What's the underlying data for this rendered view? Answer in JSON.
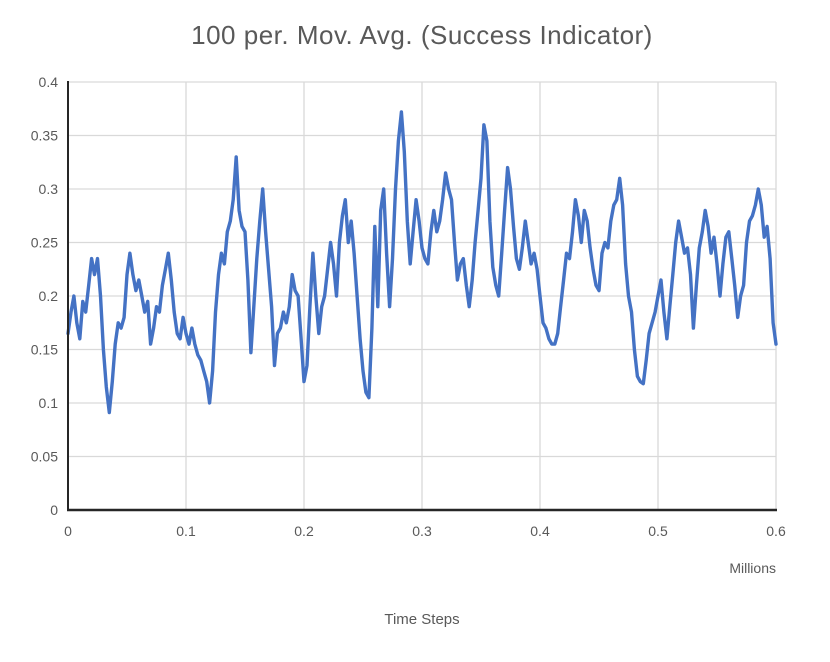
{
  "title": "100 per. Mov. Avg. (Success Indicator)",
  "x_axis_title": "Time Steps",
  "x_unit_label": "Millions",
  "colors": {
    "series_line": "#4472C4",
    "gridline": "#D9D9D9",
    "axis_line": "#262626",
    "text": "#595959",
    "background": "#FFFFFF"
  },
  "chart_data": {
    "type": "line",
    "title": "100 per. Mov. Avg. (Success Indicator)",
    "xlabel": "Time Steps",
    "x_unit_label": "Millions",
    "ylabel": "",
    "xlim": [
      0,
      0.6
    ],
    "ylim": [
      0,
      0.4
    ],
    "x_ticks": [
      "0",
      "0.1",
      "0.2",
      "0.3",
      "0.4",
      "0.5",
      "0.6"
    ],
    "x_tick_values": [
      0,
      0.1,
      0.2,
      0.3,
      0.4,
      0.5,
      0.6
    ],
    "y_ticks": [
      "0",
      "0.05",
      "0.1",
      "0.15",
      "0.2",
      "0.25",
      "0.3",
      "0.35",
      "0.4"
    ],
    "y_tick_values": [
      0,
      0.05,
      0.1,
      0.15,
      0.2,
      0.25,
      0.3,
      0.35,
      0.4
    ],
    "grid": true,
    "legend_position": "none",
    "series": [
      {
        "name": "100 per. Mov. Avg. (Success Indicator)",
        "color": "#4472C4",
        "x_start": 0,
        "x_step": 0.0025,
        "x_unit": "Millions of time steps",
        "values": [
          0.165,
          0.185,
          0.2,
          0.175,
          0.16,
          0.195,
          0.185,
          0.21,
          0.235,
          0.22,
          0.235,
          0.2,
          0.15,
          0.115,
          0.091,
          0.12,
          0.155,
          0.175,
          0.17,
          0.18,
          0.22,
          0.24,
          0.22,
          0.205,
          0.215,
          0.2,
          0.185,
          0.195,
          0.155,
          0.17,
          0.19,
          0.185,
          0.21,
          0.225,
          0.24,
          0.215,
          0.185,
          0.165,
          0.16,
          0.18,
          0.165,
          0.155,
          0.17,
          0.155,
          0.145,
          0.14,
          0.13,
          0.12,
          0.1,
          0.13,
          0.185,
          0.22,
          0.24,
          0.23,
          0.26,
          0.27,
          0.29,
          0.33,
          0.28,
          0.265,
          0.26,
          0.215,
          0.147,
          0.19,
          0.235,
          0.27,
          0.3,
          0.26,
          0.225,
          0.19,
          0.135,
          0.165,
          0.17,
          0.185,
          0.175,
          0.19,
          0.22,
          0.205,
          0.2,
          0.16,
          0.12,
          0.135,
          0.19,
          0.24,
          0.2,
          0.165,
          0.19,
          0.2,
          0.225,
          0.25,
          0.23,
          0.2,
          0.25,
          0.275,
          0.29,
          0.25,
          0.27,
          0.24,
          0.2,
          0.16,
          0.13,
          0.11,
          0.105,
          0.17,
          0.265,
          0.19,
          0.28,
          0.3,
          0.24,
          0.19,
          0.235,
          0.3,
          0.345,
          0.372,
          0.335,
          0.27,
          0.23,
          0.26,
          0.29,
          0.27,
          0.245,
          0.235,
          0.23,
          0.26,
          0.28,
          0.26,
          0.27,
          0.29,
          0.315,
          0.3,
          0.29,
          0.25,
          0.215,
          0.23,
          0.235,
          0.21,
          0.19,
          0.215,
          0.25,
          0.28,
          0.31,
          0.36,
          0.345,
          0.27,
          0.227,
          0.21,
          0.2,
          0.24,
          0.28,
          0.32,
          0.3,
          0.265,
          0.235,
          0.225,
          0.245,
          0.27,
          0.25,
          0.23,
          0.24,
          0.225,
          0.2,
          0.175,
          0.17,
          0.16,
          0.155,
          0.155,
          0.165,
          0.19,
          0.215,
          0.24,
          0.235,
          0.26,
          0.29,
          0.275,
          0.25,
          0.28,
          0.27,
          0.245,
          0.225,
          0.21,
          0.205,
          0.24,
          0.25,
          0.245,
          0.27,
          0.285,
          0.29,
          0.31,
          0.285,
          0.23,
          0.2,
          0.185,
          0.15,
          0.125,
          0.12,
          0.118,
          0.14,
          0.165,
          0.175,
          0.185,
          0.2,
          0.215,
          0.185,
          0.16,
          0.19,
          0.22,
          0.25,
          0.27,
          0.255,
          0.24,
          0.245,
          0.22,
          0.17,
          0.21,
          0.245,
          0.26,
          0.28,
          0.265,
          0.24,
          0.255,
          0.23,
          0.2,
          0.23,
          0.255,
          0.26,
          0.235,
          0.21,
          0.18,
          0.2,
          0.21,
          0.25,
          0.27,
          0.275,
          0.285,
          0.3,
          0.285,
          0.255,
          0.265,
          0.235,
          0.175,
          0.155
        ]
      }
    ]
  }
}
